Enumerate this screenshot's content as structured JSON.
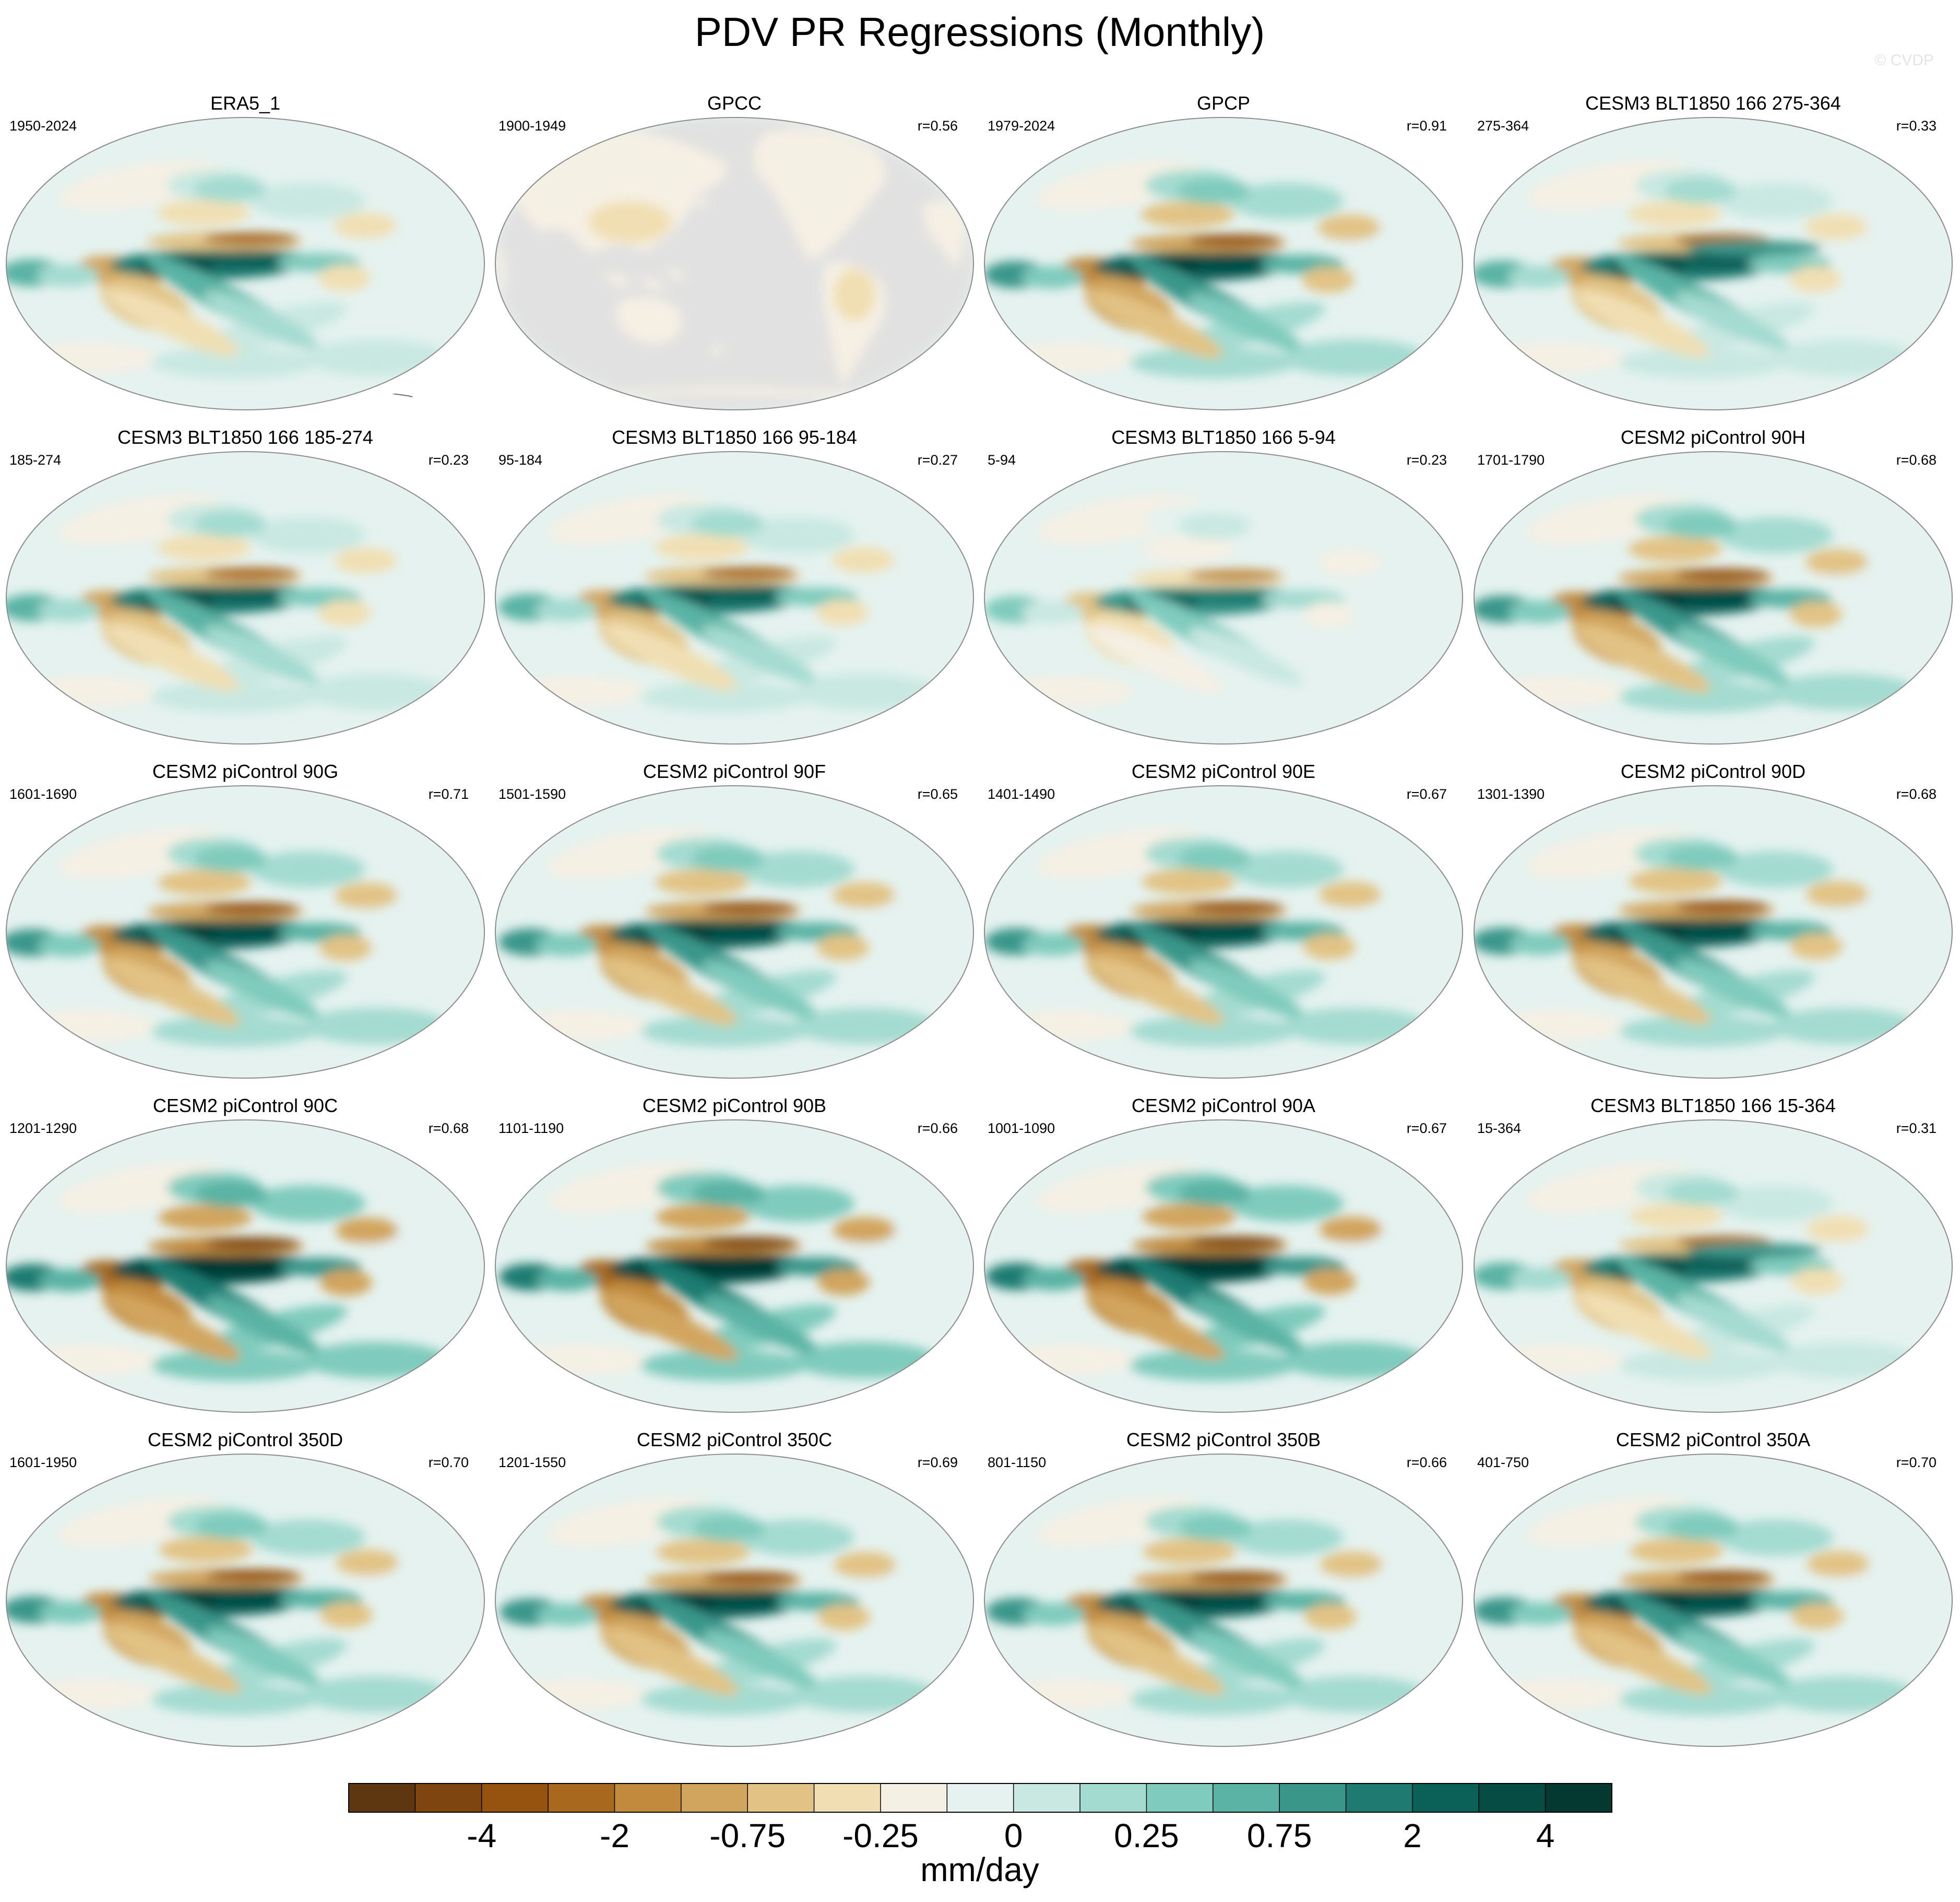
{
  "chart_data": {
    "type": "heatmap",
    "title": "PDV PR Regressions (Monthly)",
    "watermark": "© CVDP",
    "projection": "robinson",
    "colorbar": {
      "label": "mm/day",
      "tick_labels": [
        "-4",
        "-2",
        "-0.75",
        "-0.25",
        "0",
        "0.25",
        "0.75",
        "2",
        "4"
      ],
      "colors": [
        "#5e3610",
        "#7e4511",
        "#95530f",
        "#a8691f",
        "#c18a3c",
        "#d2a55f",
        "#e2c385",
        "#f1dfb3",
        "#f5f0e4",
        "#e5f2ef",
        "#c9e8e1",
        "#a4dbd0",
        "#7fcbbd",
        "#5ab3a4",
        "#3b968a",
        "#1f7b71",
        "#0b6158",
        "#064c44",
        "#033930"
      ]
    },
    "panels": [
      {
        "name": "ERA5_1",
        "period": "1950-2024",
        "r": ""
      },
      {
        "name": "GPCC",
        "period": "1900-1949",
        "r": "r=0.56"
      },
      {
        "name": "GPCP",
        "period": "1979-2024",
        "r": "r=0.91"
      },
      {
        "name": "CESM3 BLT1850 166 275-364",
        "period": "275-364",
        "r": "r=0.33"
      },
      {
        "name": "CESM3 BLT1850 166 185-274",
        "period": "185-274",
        "r": "r=0.23"
      },
      {
        "name": "CESM3 BLT1850 166 95-184",
        "period": "95-184",
        "r": "r=0.27"
      },
      {
        "name": "CESM3 BLT1850 166 5-94",
        "period": "5-94",
        "r": "r=0.23"
      },
      {
        "name": "CESM2 piControl 90H",
        "period": "1701-1790",
        "r": "r=0.68"
      },
      {
        "name": "CESM2 piControl 90G",
        "period": "1601-1690",
        "r": "r=0.71"
      },
      {
        "name": "CESM2 piControl 90F",
        "period": "1501-1590",
        "r": "r=0.65"
      },
      {
        "name": "CESM2 piControl 90E",
        "period": "1401-1490",
        "r": "r=0.67"
      },
      {
        "name": "CESM2 piControl 90D",
        "period": "1301-1390",
        "r": "r=0.68"
      },
      {
        "name": "CESM2 piControl 90C",
        "period": "1201-1290",
        "r": "r=0.68"
      },
      {
        "name": "CESM2 piControl 90B",
        "period": "1101-1190",
        "r": "r=0.66"
      },
      {
        "name": "CESM2 piControl 90A",
        "period": "1001-1090",
        "r": "r=0.67"
      },
      {
        "name": "CESM3 BLT1850 166 15-364",
        "period": "15-364",
        "r": "r=0.31"
      },
      {
        "name": "CESM2 piControl 350D",
        "period": "1601-1950",
        "r": "r=0.70"
      },
      {
        "name": "CESM2 piControl 350C",
        "period": "1201-1550",
        "r": "r=0.69"
      },
      {
        "name": "CESM2 piControl 350B",
        "period": "801-1150",
        "r": "r=0.66"
      },
      {
        "name": "CESM2 piControl 350A",
        "period": "401-750",
        "r": "r=0.70"
      }
    ]
  }
}
